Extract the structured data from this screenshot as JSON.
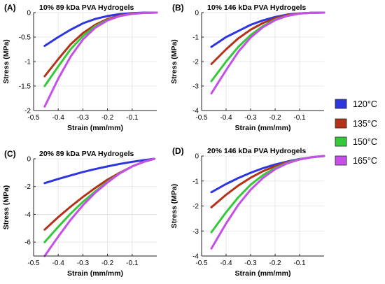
{
  "legend": [
    {
      "label": "120°C",
      "color": "#2d35e0"
    },
    {
      "label": "135°C",
      "color": "#b4321a"
    },
    {
      "label": "150°C",
      "color": "#35c93a"
    },
    {
      "label": "165°C",
      "color": "#c54fe8"
    }
  ],
  "chart_data": [
    {
      "type": "line",
      "panel": "(A)",
      "title": "10% 89 kDa PVA Hydrogels",
      "xlabel": "Strain (mm/mm)",
      "ylabel": "Stress (MPa)",
      "xlim": [
        -0.5,
        0
      ],
      "ylim": [
        -2,
        0
      ],
      "xticks": [
        -0.5,
        -0.4,
        -0.3,
        -0.2,
        -0.1
      ],
      "yticks": [
        0,
        -0.5,
        -1,
        -1.5,
        -2
      ],
      "ytick_labels": [
        "0",
        "-0.5",
        "-1",
        "-1.5",
        "-2"
      ],
      "grid": true,
      "series": [
        {
          "name": "120°C",
          "x": [
            -0.455,
            -0.4,
            -0.35,
            -0.3,
            -0.25,
            -0.2,
            -0.15,
            -0.1,
            -0.05,
            0
          ],
          "y": [
            -0.68,
            -0.5,
            -0.35,
            -0.22,
            -0.13,
            -0.07,
            -0.03,
            -0.01,
            0,
            0
          ]
        },
        {
          "name": "135°C",
          "x": [
            -0.455,
            -0.4,
            -0.35,
            -0.3,
            -0.25,
            -0.2,
            -0.15,
            -0.1,
            -0.05,
            0
          ],
          "y": [
            -1.3,
            -0.95,
            -0.65,
            -0.42,
            -0.25,
            -0.13,
            -0.06,
            -0.02,
            -0.005,
            0
          ]
        },
        {
          "name": "150°C",
          "x": [
            -0.455,
            -0.4,
            -0.35,
            -0.3,
            -0.25,
            -0.2,
            -0.15,
            -0.1,
            -0.05,
            0
          ],
          "y": [
            -1.5,
            -1.1,
            -0.75,
            -0.48,
            -0.28,
            -0.15,
            -0.07,
            -0.025,
            -0.005,
            0
          ]
        },
        {
          "name": "165°C",
          "x": [
            -0.455,
            -0.4,
            -0.35,
            -0.3,
            -0.25,
            -0.2,
            -0.15,
            -0.1,
            -0.05,
            0
          ],
          "y": [
            -1.92,
            -1.35,
            -0.9,
            -0.55,
            -0.31,
            -0.16,
            -0.07,
            -0.025,
            -0.005,
            0
          ]
        }
      ]
    },
    {
      "type": "line",
      "panel": "(B)",
      "title": "10% 146 kDa PVA Hydrogels",
      "xlabel": "Strain (mm/mm)",
      "ylabel": "Stress (MPa)",
      "xlim": [
        -0.5,
        0
      ],
      "ylim": [
        -4,
        0
      ],
      "xticks": [
        -0.5,
        -0.4,
        -0.3,
        -0.2,
        -0.1
      ],
      "yticks": [
        0,
        -1,
        -2,
        -3,
        -4
      ],
      "ytick_labels": [
        "0",
        "-1",
        "-2",
        "-3",
        "-4"
      ],
      "grid": true,
      "series": [
        {
          "name": "120°C",
          "x": [
            -0.46,
            -0.4,
            -0.35,
            -0.3,
            -0.25,
            -0.2,
            -0.15,
            -0.1,
            -0.05,
            0
          ],
          "y": [
            -1.4,
            -1.0,
            -0.75,
            -0.5,
            -0.32,
            -0.18,
            -0.08,
            -0.03,
            -0.005,
            0
          ]
        },
        {
          "name": "135°C",
          "x": [
            -0.46,
            -0.4,
            -0.35,
            -0.3,
            -0.25,
            -0.2,
            -0.15,
            -0.1,
            -0.05,
            0
          ],
          "y": [
            -2.1,
            -1.5,
            -1.05,
            -0.7,
            -0.43,
            -0.23,
            -0.1,
            -0.03,
            -0.005,
            0
          ]
        },
        {
          "name": "150°C",
          "x": [
            -0.46,
            -0.4,
            -0.35,
            -0.3,
            -0.25,
            -0.2,
            -0.15,
            -0.1,
            -0.05,
            0
          ],
          "y": [
            -2.8,
            -2.0,
            -1.4,
            -0.92,
            -0.55,
            -0.29,
            -0.13,
            -0.04,
            -0.005,
            0
          ]
        },
        {
          "name": "165°C",
          "x": [
            -0.46,
            -0.4,
            -0.35,
            -0.3,
            -0.25,
            -0.2,
            -0.15,
            -0.1,
            -0.05,
            0
          ],
          "y": [
            -3.3,
            -2.35,
            -1.6,
            -1.02,
            -0.6,
            -0.31,
            -0.13,
            -0.04,
            -0.005,
            0
          ]
        }
      ]
    },
    {
      "type": "line",
      "panel": "(C)",
      "title": "20% 89 kDa PVA Hydrogels",
      "xlabel": "Strain (mm/mm)",
      "ylabel": "Stress (MPa)",
      "xlim": [
        -0.5,
        0
      ],
      "ylim": [
        -7,
        0
      ],
      "xticks": [
        -0.5,
        -0.4,
        -0.3,
        -0.2,
        -0.1
      ],
      "yticks": [
        0,
        -2,
        -4,
        -6
      ],
      "ytick_labels": [
        "0",
        "-2",
        "-4",
        "-6"
      ],
      "grid": true,
      "series": [
        {
          "name": "120°C",
          "x": [
            -0.455,
            -0.4,
            -0.35,
            -0.3,
            -0.25,
            -0.2,
            -0.15,
            -0.1,
            -0.05,
            -0.01
          ],
          "y": [
            -1.75,
            -1.45,
            -1.2,
            -0.95,
            -0.74,
            -0.55,
            -0.37,
            -0.22,
            -0.09,
            0
          ]
        },
        {
          "name": "135°C",
          "x": [
            -0.455,
            -0.4,
            -0.35,
            -0.3,
            -0.25,
            -0.2,
            -0.15,
            -0.1,
            -0.05,
            -0.01
          ],
          "y": [
            -5.1,
            -4.2,
            -3.45,
            -2.75,
            -2.1,
            -1.5,
            -1.0,
            -0.55,
            -0.2,
            0
          ]
        },
        {
          "name": "150°C",
          "x": [
            -0.455,
            -0.4,
            -0.35,
            -0.3,
            -0.25,
            -0.2,
            -0.15,
            -0.1,
            -0.05,
            -0.01
          ],
          "y": [
            -6.0,
            -4.9,
            -3.95,
            -3.1,
            -2.35,
            -1.65,
            -1.05,
            -0.55,
            -0.2,
            0
          ]
        },
        {
          "name": "165°C",
          "x": [
            -0.455,
            -0.4,
            -0.35,
            -0.3,
            -0.25,
            -0.2,
            -0.15,
            -0.1,
            -0.05,
            -0.01
          ],
          "y": [
            -7.0,
            -5.6,
            -4.4,
            -3.35,
            -2.45,
            -1.7,
            -1.05,
            -0.55,
            -0.2,
            0
          ]
        }
      ]
    },
    {
      "type": "line",
      "panel": "(D)",
      "title": "20% 146 kDa PVA Hydrogels",
      "xlabel": "Strain (mm/mm)",
      "ylabel": "Stress (MPa)",
      "xlim": [
        -0.5,
        0
      ],
      "ylim": [
        -4,
        0
      ],
      "xticks": [
        -0.5,
        -0.4,
        -0.3,
        -0.2,
        -0.1
      ],
      "yticks": [
        0,
        -1,
        -2,
        -3,
        -4
      ],
      "ytick_labels": [
        "0",
        "-1",
        "-2",
        "-3",
        "-4"
      ],
      "grid": true,
      "series": [
        {
          "name": "120°C",
          "x": [
            -0.46,
            -0.4,
            -0.35,
            -0.3,
            -0.25,
            -0.2,
            -0.15,
            -0.1,
            -0.05,
            0
          ],
          "y": [
            -1.45,
            -1.12,
            -0.88,
            -0.67,
            -0.49,
            -0.34,
            -0.22,
            -0.12,
            -0.05,
            0
          ]
        },
        {
          "name": "135°C",
          "x": [
            -0.46,
            -0.4,
            -0.35,
            -0.3,
            -0.25,
            -0.2,
            -0.15,
            -0.1,
            -0.05,
            0
          ],
          "y": [
            -2.05,
            -1.55,
            -1.18,
            -0.87,
            -0.61,
            -0.41,
            -0.25,
            -0.13,
            -0.05,
            0
          ]
        },
        {
          "name": "150°C",
          "x": [
            -0.46,
            -0.4,
            -0.35,
            -0.3,
            -0.25,
            -0.2,
            -0.15,
            -0.1,
            -0.05,
            0
          ],
          "y": [
            -3.05,
            -2.25,
            -1.65,
            -1.15,
            -0.77,
            -0.48,
            -0.27,
            -0.13,
            -0.05,
            0
          ]
        },
        {
          "name": "165°C",
          "x": [
            -0.46,
            -0.4,
            -0.35,
            -0.3,
            -0.25,
            -0.2,
            -0.15,
            -0.1,
            -0.05,
            0
          ],
          "y": [
            -3.7,
            -2.7,
            -1.95,
            -1.35,
            -0.88,
            -0.53,
            -0.29,
            -0.14,
            -0.05,
            0
          ]
        }
      ]
    }
  ]
}
